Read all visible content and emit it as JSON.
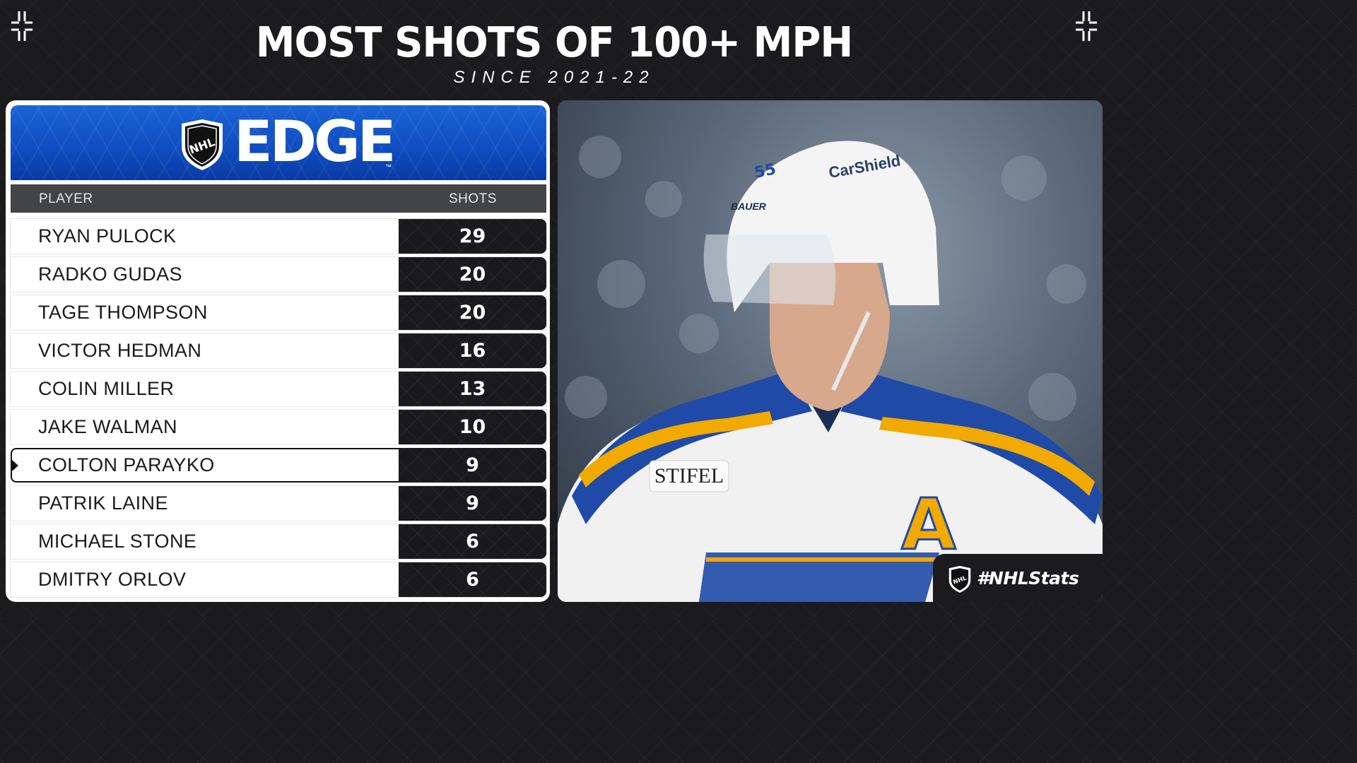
{
  "header": {
    "title": "MOST SHOTS OF 100+ MPH",
    "subtitle": "SINCE 2021-22"
  },
  "logo": {
    "league_mark": "NHL",
    "product": "EDGE",
    "tm": "™"
  },
  "table": {
    "col_player": "PLAYER",
    "col_shots": "SHOTS",
    "rows": [
      {
        "player": "RYAN PULOCK",
        "shots": "29"
      },
      {
        "player": "RADKO GUDAS",
        "shots": "20"
      },
      {
        "player": "TAGE THOMPSON",
        "shots": "20"
      },
      {
        "player": "VICTOR HEDMAN",
        "shots": "16"
      },
      {
        "player": "COLIN MILLER",
        "shots": "13"
      },
      {
        "player": "JAKE WALMAN",
        "shots": "10"
      },
      {
        "player": "COLTON PARAYKO",
        "shots": "9",
        "highlighted": true
      },
      {
        "player": "PATRIK LAINE",
        "shots": "9"
      },
      {
        "player": "MICHAEL STONE",
        "shots": "6"
      },
      {
        "player": "DMITRY ORLOV",
        "shots": "6"
      }
    ]
  },
  "photo": {
    "helmet_brand": "BAUER",
    "helmet_sponsor": "CarShield",
    "jersey_sponsor": "STIFEL",
    "jersey_letter": "A",
    "number": "55"
  },
  "footer": {
    "hashtag": "#NHLStats"
  },
  "colors": {
    "background": "#1b1b1d",
    "edge_blue": "#1a5fd3",
    "table_header": "#434447",
    "value_cell": "#1a1a1c",
    "jersey_blue": "#1f4aa8",
    "jersey_gold": "#f2a900"
  }
}
